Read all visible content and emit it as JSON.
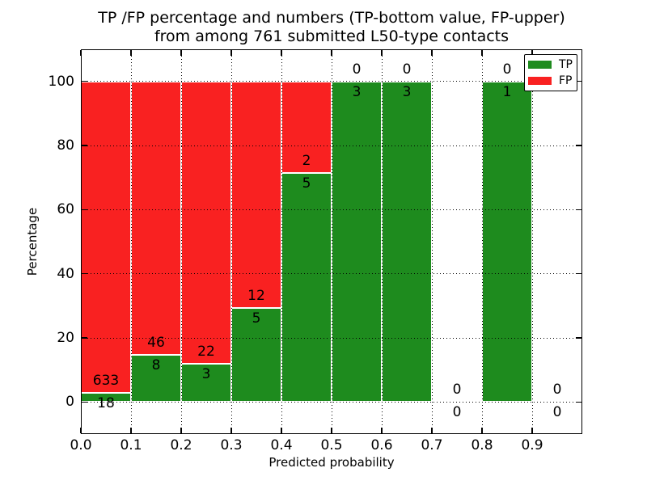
{
  "chart_data": {
    "type": "bar",
    "subtype": "stacked-percentage-histogram",
    "title_line1": "TP /FP percentage and numbers (TP-bottom value, FP-upper)",
    "title_line2": "from among 761 submitted L50-type contacts",
    "xlabel": "Predicted probability",
    "ylabel": "Percentage",
    "total_contacts": 761,
    "bin_width": 0.1,
    "bin_starts": [
      0.0,
      0.1,
      0.2,
      0.3,
      0.4,
      0.5,
      0.6,
      0.7,
      0.8,
      0.9
    ],
    "x_tick_labels": [
      "0.0",
      "0.1",
      "0.2",
      "0.3",
      "0.4",
      "0.5",
      "0.6",
      "0.7",
      "0.8",
      "0.9"
    ],
    "y_ticks": [
      0,
      20,
      40,
      60,
      80,
      100
    ],
    "xlim": [
      0.0,
      1.0
    ],
    "ylim": [
      -10,
      110
    ],
    "grid": "dotted",
    "axes_color": "#000000",
    "bar_edge_color": "#ffffff",
    "legend_position": "upper-right",
    "series": [
      {
        "name": "TP",
        "color": "#1e8b1e",
        "counts": [
          18,
          8,
          3,
          5,
          5,
          3,
          3,
          0,
          1,
          0
        ]
      },
      {
        "name": "FP",
        "color": "#f92121",
        "counts": [
          633,
          46,
          22,
          12,
          2,
          0,
          0,
          0,
          0,
          0
        ]
      }
    ],
    "tp_percent_heights": [
      2.8,
      14.8,
      12.0,
      29.4,
      71.4,
      100,
      100,
      0,
      100,
      0
    ]
  }
}
